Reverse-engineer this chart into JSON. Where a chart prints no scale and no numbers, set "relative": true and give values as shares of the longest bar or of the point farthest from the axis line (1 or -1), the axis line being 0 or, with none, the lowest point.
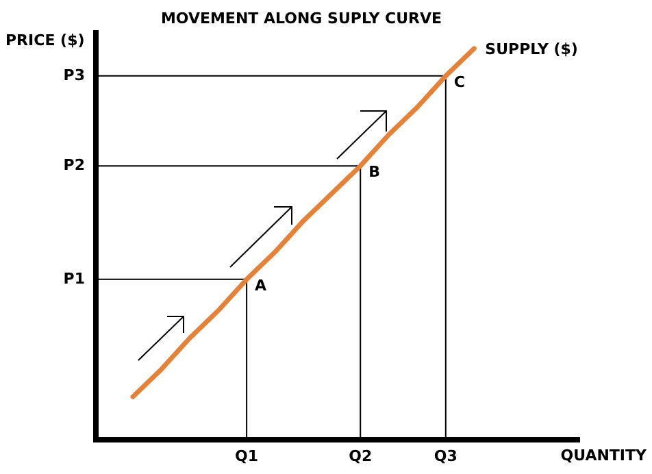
{
  "chart_data": {
    "type": "line",
    "title": "MOVEMENT ALONG SUPLY CURVE",
    "xlabel": "QUANTITY",
    "ylabel": "PRICE ($)",
    "relative": true,
    "marker": "none",
    "categories": [
      null,
      null,
      null,
      null,
      "Q1",
      null,
      null,
      null,
      "Q2",
      null,
      null,
      "Q3",
      null
    ],
    "series": [
      {
        "name": "SUPPLY ($)",
        "color": "#e5823a",
        "values": [
          0.11,
          0.18,
          0.26,
          0.33,
          0.41,
          0.48,
          0.56,
          0.63,
          0.7,
          0.78,
          0.85,
          0.93,
          1
        ]
      }
    ],
    "annotations": [
      {
        "text": "A",
        "x": "Q1",
        "y": 0.41
      },
      {
        "text": "B",
        "x": "Q2",
        "y": 0.7
      },
      {
        "text": "C",
        "x": "Q3",
        "y": 0.93
      },
      "P1",
      "P2",
      "P3"
    ]
  }
}
